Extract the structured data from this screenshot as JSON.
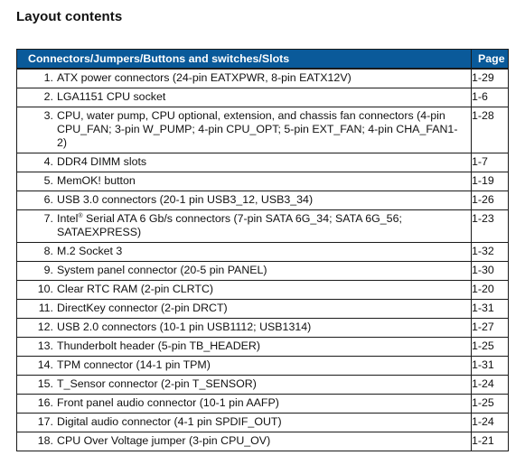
{
  "title": "Layout contents",
  "table": {
    "headers": {
      "item": "Connectors/Jumpers/Buttons and switches/Slots",
      "page": "Page"
    },
    "rows": [
      {
        "num": "1.",
        "text": "ATX power connectors (24-pin EATXPWR, 8-pin EATX12V)",
        "page": "1-29"
      },
      {
        "num": "2.",
        "text": "LGA1151 CPU socket",
        "page": "1-6"
      },
      {
        "num": "3.",
        "text": "CPU, water pump, CPU optional, extension, and chassis fan connectors (4-pin CPU_FAN; 3-pin W_PUMP; 4-pin CPU_OPT; 5-pin EXT_FAN; 4-pin CHA_FAN1-2)",
        "page": "1-28"
      },
      {
        "num": "4.",
        "text": "DDR4 DIMM slots",
        "page": "1-7"
      },
      {
        "num": "5.",
        "text": "MemOK! button",
        "page": "1-19"
      },
      {
        "num": "6.",
        "text": "USB 3.0 connectors (20-1 pin USB3_12, USB3_34)",
        "page": "1-26"
      },
      {
        "num": "7.",
        "text_pre": "Intel",
        "text_sup": "®",
        "text": " Serial ATA 6 Gb/s connectors (7-pin SATA 6G_34; SATA 6G_56; SATAEXPRESS)",
        "page": "1-23"
      },
      {
        "num": "8.",
        "text": "M.2 Socket 3",
        "page": "1-32"
      },
      {
        "num": "9.",
        "text": "System panel connector (20-5 pin PANEL)",
        "page": "1-30"
      },
      {
        "num": "10.",
        "text": "Clear RTC RAM (2-pin CLRTC)",
        "page": "1-20"
      },
      {
        "num": "11.",
        "text": "DirectKey connector (2-pin DRCT)",
        "page": "1-31"
      },
      {
        "num": "12.",
        "text": "USB 2.0 connectors (10-1 pin USB1112; USB1314)",
        "page": "1-27"
      },
      {
        "num": "13.",
        "text": "Thunderbolt header (5-pin TB_HEADER)",
        "page": "1-25"
      },
      {
        "num": "14.",
        "text": "TPM connector (14-1 pin TPM)",
        "page": "1-31"
      },
      {
        "num": "15.",
        "text": "T_Sensor connector (2-pin T_SENSOR)",
        "page": "1-24"
      },
      {
        "num": "16.",
        "text": "Front panel audio connector (10-1 pin AAFP)",
        "page": "1-25"
      },
      {
        "num": "17.",
        "text": "Digital audio connector (4-1 pin SPDIF_OUT)",
        "page": "1-24"
      },
      {
        "num": "18.",
        "text": "CPU Over Voltage jumper (3-pin CPU_OV)",
        "page": "1-21"
      }
    ]
  },
  "colors": {
    "header_bg": "#0a5a9a",
    "header_text": "#ffffff",
    "border": "#1a1a1a"
  }
}
